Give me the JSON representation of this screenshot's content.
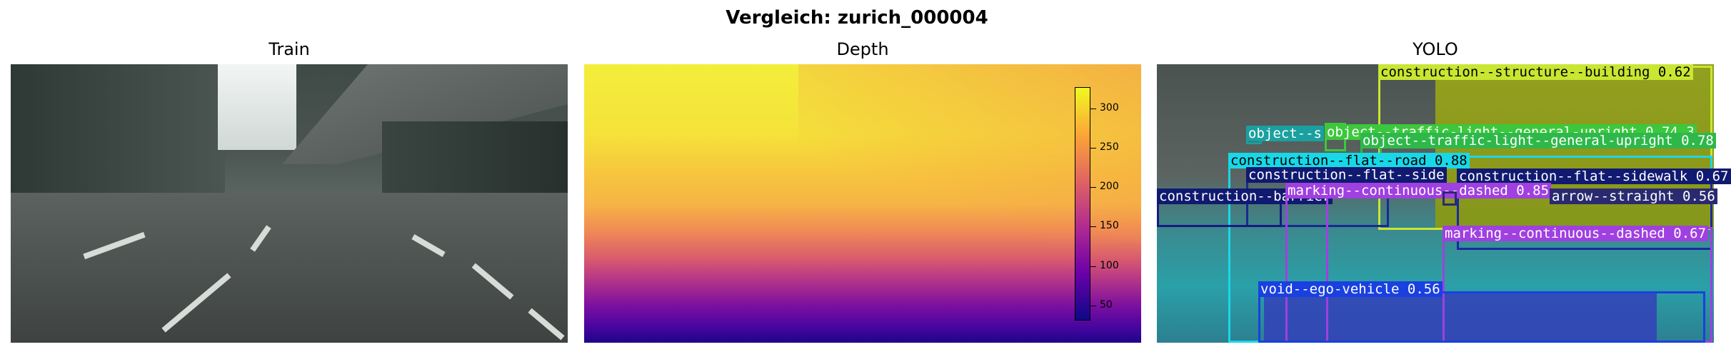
{
  "figure": {
    "title": "Vergleich: zurich_000004"
  },
  "panels": {
    "train": {
      "title": "Train"
    },
    "depth": {
      "title": "Depth",
      "colorbar": {
        "ticks": [
          "300",
          "250",
          "200",
          "150",
          "100",
          "50"
        ]
      }
    },
    "yolo": {
      "title": "YOLO"
    }
  },
  "detections": [
    {
      "label": "construction--structure--building 0.62",
      "color": "#c8e632",
      "label_bg": "#c8e632",
      "label_color": "#000000"
    },
    {
      "label": "object--traffic-light--general-upright 0.74 3",
      "color": "#3cc83c",
      "label_bg": "#3cc83c",
      "label_color": "#ffffff"
    },
    {
      "label": "object--traffic-light--general-upright 0.78",
      "color": "#2fb84a",
      "label_bg": "#2fb84a",
      "label_color": "#ffffff"
    },
    {
      "label": "object--s",
      "color": "#1aa0a0",
      "label_bg": "#1aa0a0",
      "label_color": "#ffffff"
    },
    {
      "label": "construction--flat--road 0.88",
      "color": "#18d8e8",
      "label_bg": "#18d8e8",
      "label_color": "#000000"
    },
    {
      "label": "construction--flat--sidewalk 0.67",
      "color": "#1a2aa0",
      "label_bg": "#101a70",
      "label_color": "#ffffff"
    },
    {
      "label": "construction--flat--side",
      "color": "#1a2a90",
      "label_bg": "#101a70",
      "label_color": "#ffffff"
    },
    {
      "label": "construction--barrier",
      "color": "#1a1a80",
      "label_bg": "#101a70",
      "label_color": "#ffffff"
    },
    {
      "label": "marking--continuous--dashed 0.85",
      "color": "#a040e0",
      "label_bg": "#a040e0",
      "label_color": "#ffffff"
    },
    {
      "label": "arrow--straight 0.56",
      "color": "#2a2a70",
      "label_bg": "#2a2a70",
      "label_color": "#ffffff"
    },
    {
      "label": "marking--continuous--dashed 0.67",
      "color": "#a040e0",
      "label_bg": "#a040e0",
      "label_color": "#ffffff"
    },
    {
      "label": "void--ego-vehicle 0.56",
      "color": "#1a40e0",
      "label_bg": "#1a40e0",
      "label_color": "#ffffff"
    }
  ]
}
